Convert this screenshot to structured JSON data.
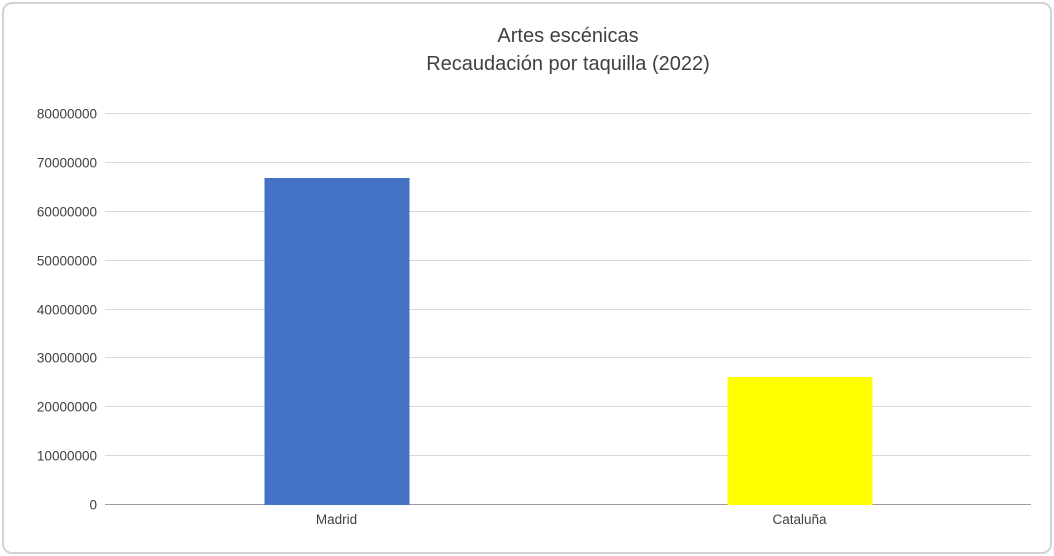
{
  "title": {
    "line1": "Artes escénicas",
    "line2": "Recaudación por taquilla (2022)"
  },
  "chart_data": {
    "type": "bar",
    "title": "Artes escénicas — Recaudación por taquilla (2022)",
    "categories": [
      "Madrid",
      "Cataluña"
    ],
    "values": [
      66900000,
      26200000
    ],
    "bar_colors": [
      "#4472c4",
      "#ffff00"
    ],
    "xlabel": "",
    "ylabel": "",
    "ylim": [
      0,
      80000000
    ],
    "ytick_interval": 10000000,
    "ytick_labels": [
      "0",
      "10000000",
      "20000000",
      "30000000",
      "40000000",
      "50000000",
      "60000000",
      "70000000",
      "80000000"
    ],
    "grid": true,
    "legend": false
  },
  "colors": {
    "gridline": "#d9d9d9",
    "axis_line": "#9b9b9b",
    "text": "#404040",
    "frame_border": "#d2d2d2",
    "background": "#ffffff"
  }
}
